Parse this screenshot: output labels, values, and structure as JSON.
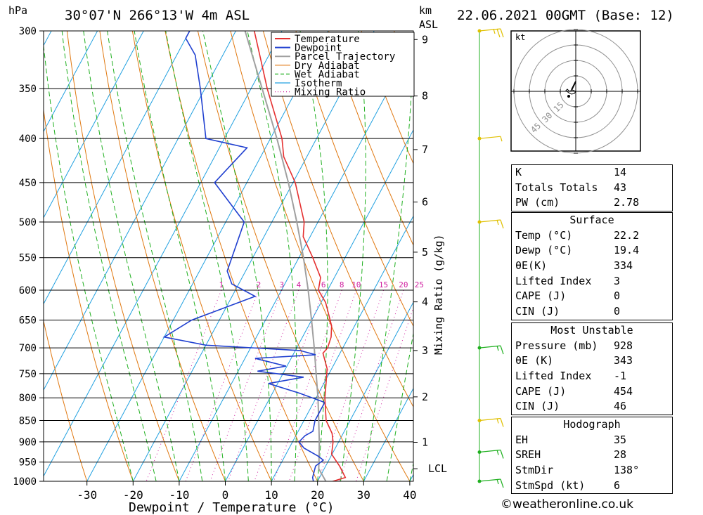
{
  "header": {
    "unit_hpa": "hPa",
    "location": "30°07'N  266°13'W  4m  ASL",
    "unit_km": "km",
    "unit_asl": "ASL",
    "datetime": "22.06.2021  00GMT  (Base: 12)"
  },
  "colors": {
    "temperature": "#e53030",
    "dewpoint": "#2040d0",
    "parcel": "#a0a0a0",
    "dry_adiabat": "#e07810",
    "wet_adiabat": "#20b020",
    "isotherm": "#20a0e0",
    "mixing_ratio": "#d020a0",
    "wind_barb": "#e0c000",
    "wind_barb_low": "#20b020"
  },
  "chart_data": {
    "type": "line",
    "title": "",
    "xlabel": "Dewpoint / Temperature (°C)",
    "ylabel": "hPa",
    "right_label": "Mixing Ratio (g/kg)",
    "x_ticks": [
      -30,
      -20,
      -10,
      0,
      10,
      20,
      30,
      40
    ],
    "x_tick_labels": [
      "-30",
      "-20",
      "-10",
      "0",
      "10",
      "20",
      "30",
      "40"
    ],
    "xlim": [
      -40,
      40
    ],
    "pressure_ticks": [
      300,
      350,
      400,
      450,
      500,
      550,
      600,
      650,
      700,
      750,
      800,
      850,
      900,
      950,
      1000
    ],
    "pressure_tick_labels": [
      "300",
      "350",
      "400",
      "450",
      "500",
      "550",
      "600",
      "650",
      "700",
      "750",
      "800",
      "850",
      "900",
      "950",
      "1000"
    ],
    "ylim": [
      1000,
      300
    ],
    "height_ticks_km": [
      1,
      2,
      3,
      4,
      5,
      6,
      7,
      8,
      9
    ],
    "height_ticks_hpa": [
      901,
      798,
      705,
      619,
      542,
      474,
      412,
      357,
      307
    ],
    "lcl_label": "LCL",
    "lcl_hpa": 967,
    "mixing_ratio_labels": [
      "1",
      "2",
      "3",
      "4",
      "6",
      "8",
      "10",
      "15",
      "20",
      "25"
    ],
    "mixing_ratio_values": [
      1,
      2,
      3,
      4,
      6,
      8,
      10,
      15,
      20,
      25
    ],
    "legend": [
      "Temperature",
      "Dewpoint",
      "Parcel Trajectory",
      "Dry Adiabat",
      "Wet Adiabat",
      "Isotherm",
      "Mixing Ratio"
    ],
    "legend_position": "top-right",
    "series": [
      {
        "name": "Temperature",
        "points": [
          [
            1005,
            22.2
          ],
          [
            990,
            25.6
          ],
          [
            960,
            23.0
          ],
          [
            930,
            19.9
          ],
          [
            900,
            18.8
          ],
          [
            880,
            17.6
          ],
          [
            850,
            14.8
          ],
          [
            800,
            11.9
          ],
          [
            770,
            10.5
          ],
          [
            740,
            9.0
          ],
          [
            710,
            6.3
          ],
          [
            700,
            6.7
          ],
          [
            680,
            6.2
          ],
          [
            660,
            5.0
          ],
          [
            620,
            1.0
          ],
          [
            600,
            -2.0
          ],
          [
            580,
            -3.0
          ],
          [
            550,
            -7.0
          ],
          [
            520,
            -11.5
          ],
          [
            500,
            -13.0
          ],
          [
            450,
            -19.5
          ],
          [
            420,
            -25.0
          ],
          [
            400,
            -27.5
          ],
          [
            350,
            -36.5
          ],
          [
            320,
            -42.0
          ],
          [
            300,
            -46.0
          ]
        ]
      },
      {
        "name": "Dewpoint",
        "points": [
          [
            1005,
            19.4
          ],
          [
            990,
            18.5
          ],
          [
            960,
            17.8
          ],
          [
            945,
            18.8
          ],
          [
            935,
            17.2
          ],
          [
            915,
            13.2
          ],
          [
            900,
            11.4
          ],
          [
            885,
            12.0
          ],
          [
            875,
            13.2
          ],
          [
            850,
            12.4
          ],
          [
            810,
            12.4
          ],
          [
            790,
            5.8
          ],
          [
            770,
            -2.0
          ],
          [
            757,
            4.9
          ],
          [
            745,
            -5.8
          ],
          [
            735,
            -0.2
          ],
          [
            720,
            -7.8
          ],
          [
            713,
            4.9
          ],
          [
            705,
            1.0
          ],
          [
            695,
            -20.0
          ],
          [
            680,
            -30.0
          ],
          [
            650,
            -26.0
          ],
          [
            610,
            -15.0
          ],
          [
            590,
            -21.5
          ],
          [
            570,
            -24.0
          ],
          [
            500,
            -26.0
          ],
          [
            450,
            -37.0
          ],
          [
            410,
            -34.0
          ],
          [
            400,
            -44.0
          ],
          [
            350,
            -51.0
          ],
          [
            320,
            -56.0
          ],
          [
            306,
            -60.0
          ],
          [
            300,
            -60.0
          ]
        ]
      },
      {
        "name": "Parcel Trajectory",
        "points": [
          [
            1000,
            21.8
          ],
          [
            967,
            18.8
          ],
          [
            930,
            17.2
          ],
          [
            900,
            15.8
          ],
          [
            850,
            13.2
          ],
          [
            800,
            10.4
          ],
          [
            750,
            7.2
          ],
          [
            700,
            3.8
          ],
          [
            650,
            0.0
          ],
          [
            600,
            -4.2
          ],
          [
            550,
            -9.0
          ],
          [
            500,
            -14.6
          ],
          [
            450,
            -21.0
          ],
          [
            400,
            -28.6
          ],
          [
            350,
            -37.6
          ],
          [
            300,
            -48.0
          ]
        ]
      }
    ]
  },
  "wind_barbs": [
    {
      "hpa": 300,
      "speed_kt": 25,
      "color": "yellow"
    },
    {
      "hpa": 400,
      "speed_kt": 5,
      "color": "yellow"
    },
    {
      "hpa": 500,
      "speed_kt": 15,
      "color": "yellow"
    },
    {
      "hpa": 700,
      "speed_kt": 15,
      "color": "green"
    },
    {
      "hpa": 850,
      "speed_kt": 15,
      "color": "yellow"
    },
    {
      "hpa": 925,
      "speed_kt": 15,
      "color": "green"
    },
    {
      "hpa": 1000,
      "speed_kt": 15,
      "color": "green"
    }
  ],
  "hodograph": {
    "unit": "kt",
    "ring_labels": [
      "15",
      "30",
      "45"
    ]
  },
  "indices_table": {
    "rows": [
      {
        "label": "K",
        "value": "14"
      },
      {
        "label": "Totals Totals",
        "value": "43"
      },
      {
        "label": "PW (cm)",
        "value": "2.78"
      }
    ]
  },
  "surface_table": {
    "title": "Surface",
    "rows": [
      {
        "label": "Temp (°C)",
        "value": "22.2"
      },
      {
        "label": "Dewp (°C)",
        "value": "19.4"
      },
      {
        "label": "θE(K)",
        "value": "334"
      },
      {
        "label": "Lifted Index",
        "value": "3"
      },
      {
        "label": "CAPE (J)",
        "value": "0"
      },
      {
        "label": "CIN (J)",
        "value": "0"
      }
    ]
  },
  "unstable_table": {
    "title": "Most Unstable",
    "rows": [
      {
        "label": "Pressure (mb)",
        "value": "928"
      },
      {
        "label": "θE (K)",
        "value": "343"
      },
      {
        "label": "Lifted Index",
        "value": "-1"
      },
      {
        "label": "CAPE (J)",
        "value": "454"
      },
      {
        "label": "CIN (J)",
        "value": "46"
      }
    ]
  },
  "hodograph_table": {
    "title": "Hodograph",
    "rows": [
      {
        "label": "EH",
        "value": "35"
      },
      {
        "label": "SREH",
        "value": "28"
      },
      {
        "label": "StmDir",
        "value": "138°"
      },
      {
        "label": "StmSpd (kt)",
        "value": "6"
      }
    ]
  },
  "credit": "©weatheronline.co.uk"
}
